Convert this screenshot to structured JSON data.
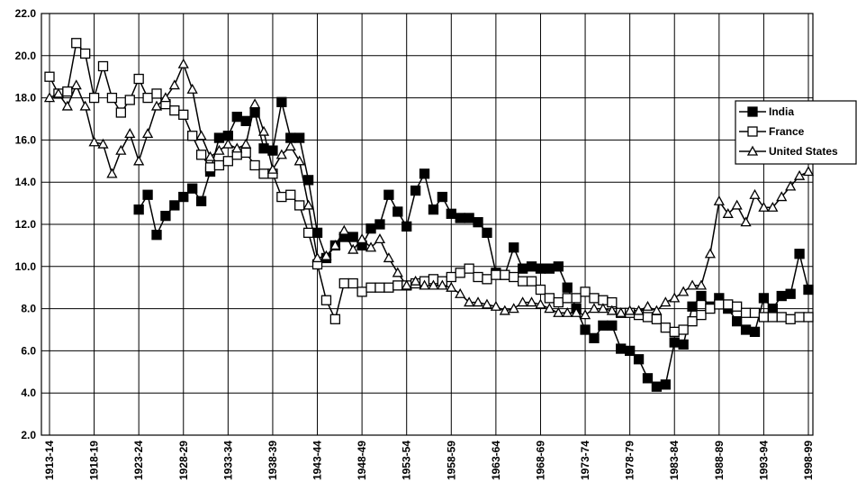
{
  "chart_data": {
    "type": "line",
    "categories": [
      "1913-14",
      null,
      null,
      null,
      null,
      "1918-19",
      null,
      null,
      null,
      null,
      "1923-24",
      null,
      null,
      null,
      null,
      "1928-29",
      null,
      null,
      null,
      null,
      "1933-34",
      null,
      null,
      null,
      null,
      "1938-39",
      null,
      null,
      null,
      null,
      "1943-44",
      null,
      null,
      null,
      null,
      "1948-49",
      null,
      null,
      null,
      null,
      "1953-54",
      null,
      null,
      null,
      null,
      "1958-59",
      null,
      null,
      null,
      null,
      "1963-64",
      null,
      null,
      null,
      null,
      "1968-69",
      null,
      null,
      null,
      null,
      "1973-74",
      null,
      null,
      null,
      null,
      "1978-79",
      null,
      null,
      null,
      null,
      "1983-84",
      null,
      null,
      null,
      null,
      "1988-89",
      null,
      null,
      null,
      null,
      "1993-94",
      null,
      null,
      null,
      null,
      "1998-99"
    ],
    "series": [
      {
        "name": "India",
        "color": "#000000",
        "marker": "filled-square",
        "values": [
          null,
          null,
          null,
          null,
          null,
          null,
          null,
          null,
          null,
          null,
          12.7,
          13.4,
          11.5,
          12.4,
          12.9,
          13.3,
          13.7,
          13.1,
          14.5,
          16.1,
          16.2,
          17.1,
          16.9,
          17.3,
          15.6,
          15.5,
          17.8,
          16.1,
          16.1,
          14.1,
          11.6,
          10.4,
          11.0,
          11.4,
          11.4,
          11.0,
          11.8,
          12.0,
          13.4,
          12.6,
          11.9,
          13.6,
          14.4,
          12.7,
          13.3,
          12.5,
          12.3,
          12.3,
          12.1,
          11.6,
          9.7,
          9.6,
          10.9,
          9.9,
          10.0,
          9.9,
          9.9,
          10.0,
          9.0,
          8.0,
          7.0,
          6.6,
          7.2,
          7.2,
          6.1,
          6.0,
          5.6,
          4.7,
          4.3,
          4.4,
          6.4,
          6.3,
          8.1,
          8.6,
          8.1,
          8.5,
          8.0,
          7.4,
          7.0,
          6.9,
          8.5,
          8.0,
          8.6,
          8.7,
          10.6,
          8.9
        ]
      },
      {
        "name": "France",
        "color": "#000000",
        "marker": "open-square",
        "values": [
          19.0,
          18.2,
          18.3,
          20.6,
          20.1,
          18.0,
          19.5,
          18.0,
          17.3,
          17.9,
          18.9,
          18.0,
          18.2,
          17.7,
          17.4,
          17.2,
          16.2,
          15.3,
          14.7,
          14.8,
          15.0,
          15.3,
          15.4,
          14.8,
          14.4,
          14.4,
          13.3,
          13.4,
          12.9,
          11.6,
          10.1,
          8.4,
          7.5,
          9.2,
          9.2,
          8.8,
          9.0,
          9.0,
          9.0,
          9.1,
          9.1,
          9.2,
          9.3,
          9.4,
          9.3,
          9.5,
          9.7,
          9.9,
          9.5,
          9.4,
          9.6,
          9.6,
          9.5,
          9.3,
          9.3,
          8.9,
          8.5,
          8.3,
          8.5,
          8.5,
          8.8,
          8.5,
          8.4,
          8.3,
          7.8,
          7.8,
          7.7,
          7.6,
          7.5,
          7.1,
          6.9,
          7.0,
          7.4,
          7.7,
          8.0,
          8.2,
          8.2,
          8.1,
          7.8,
          7.8,
          7.6,
          7.6,
          7.6,
          7.5,
          7.6,
          7.6
        ]
      },
      {
        "name": "United States",
        "color": "#000000",
        "marker": "open-triangle",
        "values": [
          18.0,
          18.2,
          17.6,
          18.6,
          17.6,
          15.9,
          15.8,
          14.4,
          15.5,
          16.3,
          15.0,
          16.3,
          17.6,
          18.0,
          18.6,
          19.6,
          18.4,
          16.2,
          15.2,
          15.5,
          15.8,
          15.6,
          15.8,
          17.7,
          16.4,
          14.6,
          15.3,
          15.7,
          15.0,
          12.9,
          10.4,
          10.5,
          11.0,
          11.7,
          10.8,
          11.3,
          10.9,
          11.3,
          10.4,
          9.7,
          9.1,
          9.3,
          9.1,
          9.1,
          9.1,
          9.0,
          8.7,
          8.3,
          8.3,
          8.2,
          8.1,
          7.9,
          8.0,
          8.3,
          8.3,
          8.2,
          8.0,
          7.8,
          7.8,
          7.8,
          7.7,
          8.0,
          8.0,
          7.9,
          7.8,
          7.9,
          7.9,
          8.1,
          7.9,
          8.3,
          8.5,
          8.8,
          9.1,
          9.1,
          10.6,
          13.1,
          12.5,
          12.9,
          12.1,
          13.4,
          12.8,
          12.8,
          13.3,
          13.8,
          14.3,
          14.5
        ]
      }
    ],
    "ylim": [
      2,
      22
    ],
    "yticks": [
      {
        "value": 2,
        "label": "2.0"
      },
      {
        "value": 4,
        "label": "4.0"
      },
      {
        "value": 6,
        "label": "6.0"
      },
      {
        "value": 8,
        "label": "8.0"
      },
      {
        "value": 10,
        "label": "10.0"
      },
      {
        "value": 12,
        "label": "12.0"
      },
      {
        "value": 14,
        "label": "14.0"
      },
      {
        "value": 16,
        "label": "16.0"
      },
      {
        "value": 18,
        "label": "18.0"
      },
      {
        "value": 20,
        "label": "20.0"
      },
      {
        "value": 22,
        "label": "22.0"
      }
    ],
    "grid": true,
    "legend": "right"
  }
}
